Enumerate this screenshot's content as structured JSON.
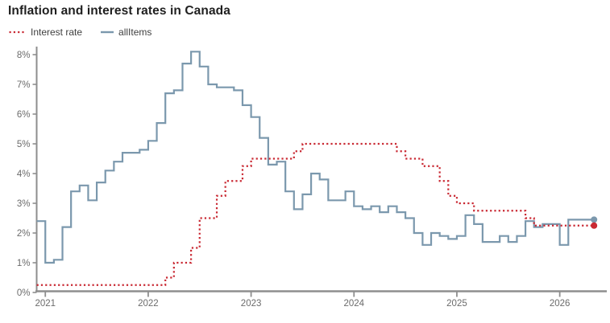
{
  "header": {
    "title": "Inflation and interest rates in Canada"
  },
  "legend": [
    {
      "label": "Interest rate",
      "color": "#c92933",
      "style": "dotted"
    },
    {
      "label": "allItems",
      "color": "#7b98ad",
      "style": "solid"
    }
  ],
  "colors": {
    "interest_rate": "#c92933",
    "all_items": "#7b98ad",
    "axis_line": "#8e8e8e",
    "tick_label": "#6b6b6b",
    "title_text": "#1f1f1f"
  },
  "chart_data": {
    "type": "line",
    "subtype": "step-after",
    "title": "Inflation and interest rates in Canada",
    "grid": false,
    "legend_position": "top-left",
    "frequency": "monthly",
    "start_month": "2020-12",
    "x_axis": {
      "ticks": [
        "2021",
        "2022",
        "2023",
        "2024",
        "2025",
        "2026"
      ]
    },
    "y_axis": {
      "ticks": [
        "0%",
        "1%",
        "2%",
        "3%",
        "4%",
        "5%",
        "6%",
        "7%",
        "8%"
      ],
      "range": [
        0,
        8
      ],
      "unit": "%"
    },
    "series": [
      {
        "name": "allItems",
        "color": "#7b98ad",
        "line": "solid",
        "end_dot": true,
        "values": [
          2.4,
          1.0,
          1.1,
          2.2,
          3.4,
          3.6,
          3.1,
          3.7,
          4.1,
          4.4,
          4.7,
          4.7,
          4.8,
          5.1,
          5.7,
          6.7,
          6.8,
          7.7,
          8.1,
          7.6,
          7.0,
          6.9,
          6.9,
          6.8,
          6.3,
          5.9,
          5.2,
          4.3,
          4.4,
          3.4,
          2.8,
          3.3,
          4.0,
          3.8,
          3.1,
          3.1,
          3.4,
          2.9,
          2.8,
          2.9,
          2.7,
          2.9,
          2.7,
          2.5,
          2.0,
          1.6,
          2.0,
          1.9,
          1.8,
          1.9,
          2.6,
          2.3,
          1.7,
          1.7,
          1.9,
          1.7,
          1.9,
          2.4,
          2.2,
          2.3,
          2.3,
          1.6,
          2.45,
          2.45,
          2.45
        ]
      },
      {
        "name": "Interest rate",
        "color": "#c92933",
        "line": "dotted",
        "end_dot": true,
        "values": [
          0.25,
          0.25,
          0.25,
          0.25,
          0.25,
          0.25,
          0.25,
          0.25,
          0.25,
          0.25,
          0.25,
          0.25,
          0.25,
          0.25,
          0.25,
          0.5,
          1.0,
          1.0,
          1.5,
          2.5,
          2.5,
          3.25,
          3.75,
          3.75,
          4.25,
          4.5,
          4.5,
          4.5,
          4.5,
          4.5,
          4.75,
          5.0,
          5.0,
          5.0,
          5.0,
          5.0,
          5.0,
          5.0,
          5.0,
          5.0,
          5.0,
          5.0,
          4.75,
          4.5,
          4.5,
          4.25,
          4.25,
          3.75,
          3.25,
          3.0,
          3.0,
          2.75,
          2.75,
          2.75,
          2.75,
          2.75,
          2.75,
          2.5,
          2.25,
          2.25,
          2.25,
          2.25,
          2.25,
          2.25,
          2.25
        ]
      }
    ]
  }
}
